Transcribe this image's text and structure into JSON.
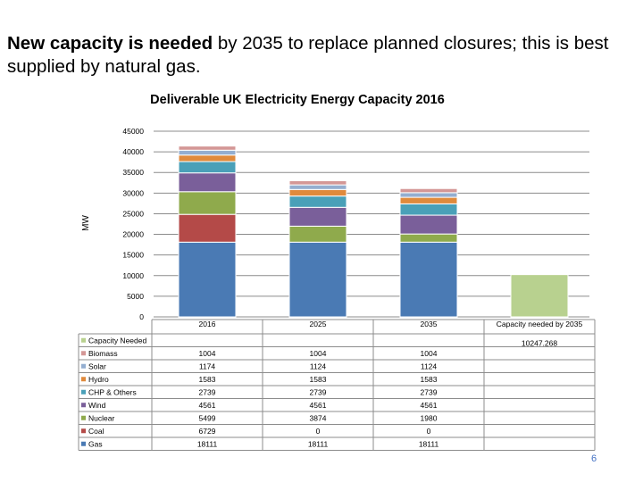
{
  "slide": {
    "title_bold": "New capacity is needed",
    "title_rest": " by 2035 to replace planned closures; this is best supplied by natural gas.",
    "page_number": "6"
  },
  "chart_data": {
    "type": "bar",
    "stacked": true,
    "title": "Deliverable UK Electricity Energy Capacity 2016",
    "ylabel": "MW",
    "ylim": [
      0,
      45000
    ],
    "yticks": [
      0,
      5000,
      10000,
      15000,
      20000,
      25000,
      30000,
      35000,
      40000,
      45000
    ],
    "ytick_labels": [
      "0",
      "5000",
      "10000",
      "15000",
      "20000",
      "25000",
      "30000",
      "35000",
      "40000",
      "45000"
    ],
    "grid": true,
    "legend": "data-table",
    "categories": [
      "2016",
      "2025",
      "2035",
      "Capacity needed by 2035"
    ],
    "series": [
      {
        "name": "Gas",
        "color": "#4a7ab4",
        "values": [
          18111,
          18111,
          18111,
          null
        ],
        "labels": [
          "18111",
          "18111",
          "18111",
          ""
        ]
      },
      {
        "name": "Coal",
        "color": "#b44a48",
        "values": [
          6729,
          0,
          0,
          null
        ],
        "labels": [
          "6729",
          "0",
          "0",
          ""
        ]
      },
      {
        "name": "Nuclear",
        "color": "#8faa4c",
        "values": [
          5499,
          3874,
          1980,
          null
        ],
        "labels": [
          "5499",
          "3874",
          "1980",
          ""
        ]
      },
      {
        "name": "Wind",
        "color": "#7a5f9a",
        "values": [
          4561,
          4561,
          4561,
          null
        ],
        "labels": [
          "4561",
          "4561",
          "4561",
          ""
        ]
      },
      {
        "name": "CHP & Others",
        "color": "#4aa0b8",
        "values": [
          2739,
          2739,
          2739,
          null
        ],
        "labels": [
          "2739",
          "2739",
          "2739",
          ""
        ]
      },
      {
        "name": "Hydro",
        "color": "#e08a3c",
        "values": [
          1583,
          1583,
          1583,
          null
        ],
        "labels": [
          "1583",
          "1583",
          "1583",
          ""
        ]
      },
      {
        "name": "Solar",
        "color": "#94aed0",
        "values": [
          1174,
          1124,
          1124,
          null
        ],
        "labels": [
          "1174",
          "1124",
          "1124",
          ""
        ]
      },
      {
        "name": "Biomass",
        "color": "#d49796",
        "values": [
          1004,
          1004,
          1004,
          null
        ],
        "labels": [
          "1004",
          "1004",
          "1004",
          ""
        ]
      },
      {
        "name": "Capacity Needed",
        "color": "#b8d18f",
        "values": [
          null,
          null,
          null,
          10247.268
        ],
        "labels": [
          "",
          "",
          "",
          "10247.268"
        ]
      }
    ]
  }
}
